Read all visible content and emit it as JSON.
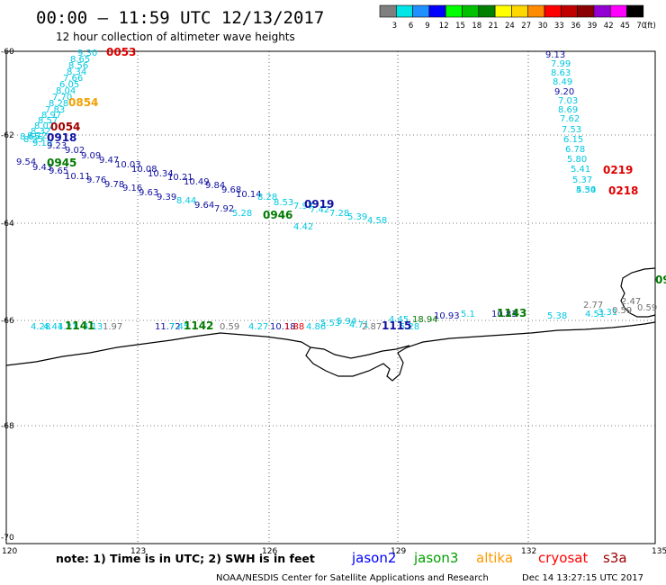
{
  "header": {
    "title": "00:00 – 11:59 UTC 12/13/2017",
    "subtitle": "12 hour collection of altimeter wave heights"
  },
  "legend": {
    "unit": "(ft)",
    "bins": [
      {
        "label": "3",
        "color": "#7f7f7f"
      },
      {
        "label": "6",
        "color": "#00e5e5"
      },
      {
        "label": "9",
        "color": "#1e90ff"
      },
      {
        "label": "12",
        "color": "#0000ff"
      },
      {
        "label": "15",
        "color": "#00ff00"
      },
      {
        "label": "18",
        "color": "#00c000"
      },
      {
        "label": "21",
        "color": "#008000"
      },
      {
        "label": "24",
        "color": "#ffff00"
      },
      {
        "label": "27",
        "color": "#ffd700"
      },
      {
        "label": "30",
        "color": "#ff8c00"
      },
      {
        "label": "33",
        "color": "#ff0000"
      },
      {
        "label": "36",
        "color": "#c00000"
      },
      {
        "label": "39",
        "color": "#8b0000"
      },
      {
        "label": "42",
        "color": "#9400d3"
      },
      {
        "label": "45",
        "color": "#ff00ff"
      },
      {
        "label": "70",
        "color": "#000000"
      }
    ]
  },
  "axes": {
    "lat_labels": [
      "-60",
      "-62",
      "-64",
      "-66",
      "-68",
      "-70"
    ],
    "lon_labels": [
      "120",
      "123",
      "126",
      "129",
      "132",
      "135"
    ]
  },
  "colors": {
    "light_blue": "#00c8e0",
    "dark_blue": "#1010a0",
    "green": "#007a00",
    "orange": "#f0a000",
    "red": "#e00000",
    "dark_red": "#a00000",
    "gray": "#707070"
  },
  "observations": [
    {
      "t": "9.30",
      "c": "light_blue"
    },
    {
      "t": "8.65",
      "c": "light_blue"
    },
    {
      "t": "8.56",
      "c": "light_blue"
    },
    {
      "t": "8.34",
      "c": "light_blue"
    },
    {
      "t": "7.66",
      "c": "light_blue"
    },
    {
      "t": "6.05",
      "c": "light_blue"
    },
    {
      "t": "8.04",
      "c": "light_blue"
    },
    {
      "t": "7.70",
      "c": "light_blue"
    },
    {
      "t": "8.28",
      "c": "light_blue"
    },
    {
      "t": "7.83",
      "c": "light_blue"
    },
    {
      "t": "8.97",
      "c": "light_blue"
    },
    {
      "t": "8.57",
      "c": "light_blue"
    },
    {
      "t": "8.02",
      "c": "light_blue"
    },
    {
      "t": "8.32",
      "c": "light_blue"
    },
    {
      "t": "8.72",
      "c": "light_blue"
    },
    {
      "t": "8.25",
      "c": "light_blue"
    },
    {
      "t": "8.65",
      "c": "light_blue"
    },
    {
      "t": "9.19",
      "c": "light_blue"
    },
    {
      "t": "9.23",
      "c": "dark_blue"
    },
    {
      "t": "9.02",
      "c": "dark_blue"
    },
    {
      "t": "9.09",
      "c": "dark_blue"
    },
    {
      "t": "9.47",
      "c": "dark_blue"
    },
    {
      "t": "10.03",
      "c": "dark_blue"
    },
    {
      "t": "10.08",
      "c": "dark_blue"
    },
    {
      "t": "10.34",
      "c": "dark_blue"
    },
    {
      "t": "9.54",
      "c": "dark_blue"
    },
    {
      "t": "9.43",
      "c": "dark_blue"
    },
    {
      "t": "9.65",
      "c": "dark_blue"
    },
    {
      "t": "10.11",
      "c": "dark_blue"
    },
    {
      "t": "9.76",
      "c": "dark_blue"
    },
    {
      "t": "9.78",
      "c": "dark_blue"
    },
    {
      "t": "9.16",
      "c": "dark_blue"
    },
    {
      "t": "9.63",
      "c": "dark_blue"
    },
    {
      "t": "9.39",
      "c": "dark_blue"
    },
    {
      "t": "10.21",
      "c": "dark_blue"
    },
    {
      "t": "10.49",
      "c": "dark_blue"
    },
    {
      "t": "9.84",
      "c": "dark_blue"
    },
    {
      "t": "9.68",
      "c": "dark_blue"
    },
    {
      "t": "10.14",
      "c": "dark_blue"
    },
    {
      "t": "8.44",
      "c": "light_blue"
    },
    {
      "t": "9.64",
      "c": "dark_blue"
    },
    {
      "t": "7.92",
      "c": "dark_blue"
    },
    {
      "t": "5.28",
      "c": "light_blue"
    },
    {
      "t": "8.28",
      "c": "light_blue"
    },
    {
      "t": "8.53",
      "c": "light_blue"
    },
    {
      "t": "7.97",
      "c": "light_blue"
    },
    {
      "t": "7.42",
      "c": "light_blue"
    },
    {
      "t": "7.28",
      "c": "light_blue"
    },
    {
      "t": "5.39",
      "c": "light_blue"
    },
    {
      "t": "4.58",
      "c": "light_blue"
    },
    {
      "t": "4.42",
      "c": "light_blue"
    },
    {
      "t": "9.13",
      "c": "dark_blue"
    },
    {
      "t": "7.99",
      "c": "light_blue"
    },
    {
      "t": "8.63",
      "c": "light_blue"
    },
    {
      "t": "8.49",
      "c": "light_blue"
    },
    {
      "t": "9.20",
      "c": "dark_blue"
    },
    {
      "t": "7.03",
      "c": "light_blue"
    },
    {
      "t": "8.69",
      "c": "light_blue"
    },
    {
      "t": "7.62",
      "c": "light_blue"
    },
    {
      "t": "7.53",
      "c": "light_blue"
    },
    {
      "t": "6.15",
      "c": "light_blue"
    },
    {
      "t": "6.78",
      "c": "light_blue"
    },
    {
      "t": "5.80",
      "c": "light_blue"
    },
    {
      "t": "5.41",
      "c": "light_blue"
    },
    {
      "t": "5.37",
      "c": "light_blue"
    },
    {
      "t": "5.54",
      "c": "light_blue"
    },
    {
      "t": "4.30",
      "c": "light_blue"
    },
    {
      "t": "4.28",
      "c": "light_blue"
    },
    {
      "t": "4.41",
      "c": "light_blue"
    },
    {
      "t": "4.21",
      "c": "light_blue"
    },
    {
      "t": "4.13",
      "c": "light_blue"
    },
    {
      "t": "1.97",
      "c": "gray"
    },
    {
      "t": "11.72",
      "c": "dark_blue"
    },
    {
      "t": "7.45",
      "c": "light_blue"
    },
    {
      "t": "0.59",
      "c": "gray"
    },
    {
      "t": "4.27",
      "c": "light_blue"
    },
    {
      "t": "10.18",
      "c": "dark_blue"
    },
    {
      "t": "1.88",
      "c": "red"
    },
    {
      "t": "4.86",
      "c": "light_blue"
    },
    {
      "t": "5.53",
      "c": "light_blue"
    },
    {
      "t": "5.94",
      "c": "light_blue"
    },
    {
      "t": "4.71",
      "c": "light_blue"
    },
    {
      "t": "2.87",
      "c": "gray"
    },
    {
      "t": "5.28",
      "c": "light_blue"
    },
    {
      "t": "4.45",
      "c": "light_blue"
    },
    {
      "t": "18.94",
      "c": "green"
    },
    {
      "t": "10.93",
      "c": "dark_blue"
    },
    {
      "t": "5.1",
      "c": "light_blue"
    },
    {
      "t": "10.83",
      "c": "dark_blue"
    },
    {
      "t": "5.38",
      "c": "light_blue"
    },
    {
      "t": "4.51",
      "c": "light_blue"
    },
    {
      "t": "3.31",
      "c": "light_blue"
    },
    {
      "t": "0.59",
      "c": "gray"
    },
    {
      "t": "2.77",
      "c": "gray"
    },
    {
      "t": "2.47",
      "c": "gray"
    },
    {
      "t": "0.59",
      "c": "gray"
    }
  ],
  "passes": [
    {
      "t": "0053",
      "c": "red"
    },
    {
      "t": "0854",
      "c": "orange"
    },
    {
      "t": "0054",
      "c": "dark_red"
    },
    {
      "t": "0918",
      "c": "dark_blue"
    },
    {
      "t": "0945",
      "c": "green"
    },
    {
      "t": "0919",
      "c": "dark_blue"
    },
    {
      "t": "0946",
      "c": "green"
    },
    {
      "t": "0219",
      "c": "red"
    },
    {
      "t": "0218",
      "c": "red"
    },
    {
      "t": "1141",
      "c": "green"
    },
    {
      "t": "1142",
      "c": "green"
    },
    {
      "t": "1115",
      "c": "dark_blue"
    },
    {
      "t": "1143",
      "c": "green"
    },
    {
      "t": "09",
      "c": "green"
    }
  ],
  "footer": {
    "note": "note:  1) Time is in UTC;  2) SWH is in feet",
    "satellites": [
      {
        "name": "jason2",
        "color": "#0000ff"
      },
      {
        "name": "jason3",
        "color": "#00a000"
      },
      {
        "name": "altika",
        "color": "#ff9900"
      },
      {
        "name": "cryosat",
        "color": "#ff0000"
      },
      {
        "name": "s3a",
        "color": "#a00000"
      }
    ],
    "credit": "NOAA/NESDIS Center for Satellite Applications and Research",
    "timestamp": "Dec 14 13:27:15 UTC 2017"
  }
}
